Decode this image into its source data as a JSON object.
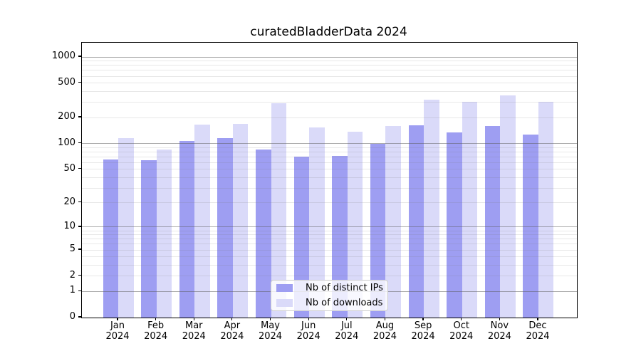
{
  "chart_data": {
    "type": "bar",
    "title": "curatedBladderData 2024",
    "categories": [
      "Jan",
      "Feb",
      "Mar",
      "Apr",
      "May",
      "Jun",
      "Jul",
      "Aug",
      "Sep",
      "Oct",
      "Nov",
      "Dec"
    ],
    "year": "2024",
    "series": [
      {
        "name": "Nb of distinct IPs",
        "color": "#9e9ef2",
        "values": [
          65,
          64,
          108,
          115,
          85,
          70,
          72,
          100,
          163,
          135,
          160,
          126
        ]
      },
      {
        "name": "Nb of downloads",
        "color": "#dadaf9",
        "values": [
          115,
          85,
          166,
          169,
          292,
          154,
          136,
          160,
          320,
          306,
          358,
          302
        ]
      }
    ],
    "xlabel": "",
    "ylabel": "",
    "yscale": "log10(v+1)",
    "yticks": [
      0,
      1,
      2,
      5,
      10,
      20,
      50,
      100,
      200,
      500,
      1000
    ],
    "ylim": [
      0,
      1460
    ],
    "grid": {
      "horizontal": true,
      "major_values": [
        1,
        10,
        100,
        1000
      ],
      "major_color": "#acacac",
      "minor_color": "#e8e8e8"
    },
    "legend_position": "lower center"
  }
}
